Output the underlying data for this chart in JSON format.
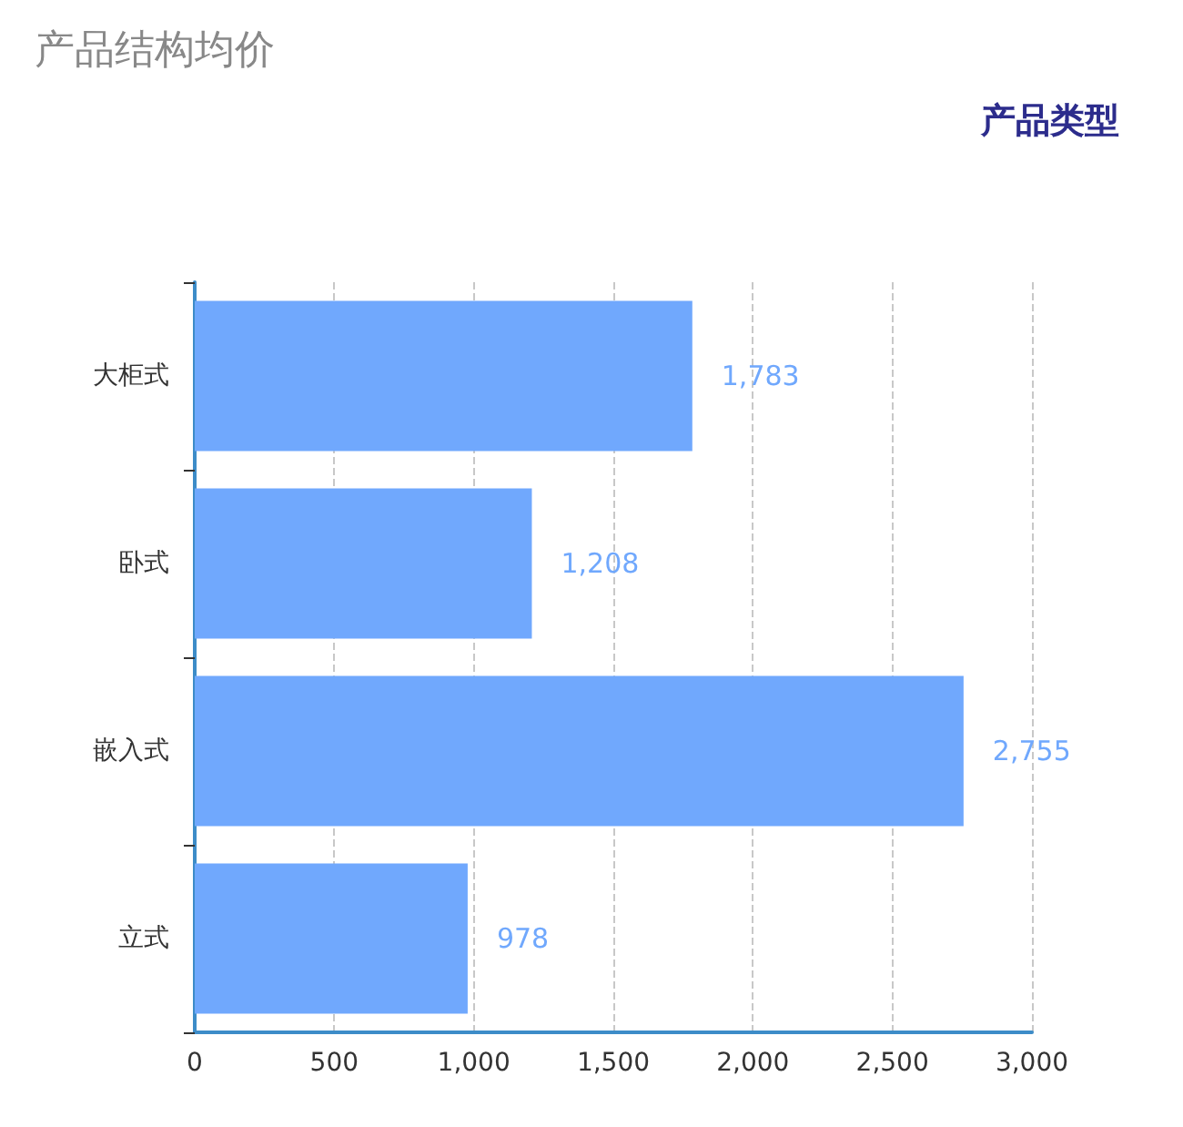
{
  "chart_data": {
    "type": "bar",
    "orientation": "horizontal",
    "title": "产品结构均价",
    "ylabel": "产品类型",
    "categories": [
      "大柜式",
      "卧式",
      "嵌入式",
      "立式"
    ],
    "values": [
      1783,
      1208,
      2755,
      978
    ],
    "value_labels": [
      "1,783",
      "1,208",
      "2,755",
      "978"
    ],
    "color": "#70a8fd",
    "xlim": [
      0,
      3000
    ],
    "xticks": [
      0,
      500,
      {
        "value": 1000,
        "label": "1,000"
      },
      {
        "value": 1500,
        "label": "1,500"
      },
      {
        "value": 2000,
        "label": "2,000"
      },
      {
        "value": 2500,
        "label": "2,500"
      },
      {
        "value": 3000,
        "label": "3,000"
      }
    ],
    "grid": "x"
  }
}
